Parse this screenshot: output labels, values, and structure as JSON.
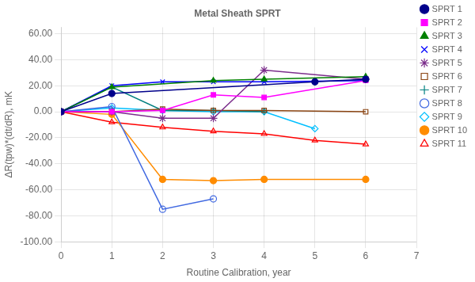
{
  "chart_data": {
    "type": "line",
    "title": "Metal Sheath SPRT",
    "xlabel": "Routine Calibration, year",
    "ylabel": "ΔR(tpw)*(dt/dR), mK",
    "xlim": [
      0,
      7
    ],
    "ylim": [
      -100,
      65
    ],
    "xticks": [
      0,
      1,
      2,
      3,
      4,
      5,
      6,
      7
    ],
    "yticks": [
      {
        "value": -100,
        "label": "-100.00"
      },
      {
        "value": -80,
        "label": "-80.00"
      },
      {
        "value": -60,
        "label": "-60.00"
      },
      {
        "value": -40,
        "label": "-40.00"
      },
      {
        "value": -20,
        "label": "-20.00"
      },
      {
        "value": 0,
        "label": "0.00"
      },
      {
        "value": 20,
        "label": "20.00"
      },
      {
        "value": 40,
        "label": "40.00"
      },
      {
        "value": 60,
        "label": "60.00"
      }
    ],
    "grid": true,
    "legend": "right",
    "series": [
      {
        "name": "SPRT 1",
        "color": "#00008B",
        "marker": "circle",
        "x": [
          0,
          1,
          5,
          6
        ],
        "values": [
          0,
          14,
          23,
          25
        ]
      },
      {
        "name": "SPRT 2",
        "color": "#FF00FF",
        "marker": "square",
        "x": [
          0,
          1,
          2,
          3,
          4,
          6
        ],
        "values": [
          0,
          0,
          1,
          13,
          11,
          24
        ]
      },
      {
        "name": "SPRT 3",
        "color": "#008000",
        "marker": "triangle",
        "x": [
          0,
          1,
          3,
          4,
          6
        ],
        "values": [
          0,
          19,
          24,
          25,
          27
        ]
      },
      {
        "name": "SPRT 4",
        "color": "#0000FF",
        "marker": "x",
        "x": [
          0,
          1,
          2,
          3,
          4,
          6
        ],
        "values": [
          0,
          20,
          23,
          23,
          23,
          24
        ]
      },
      {
        "name": "SPRT 5",
        "color": "#7B2D8B",
        "marker": "star",
        "x": [
          0,
          1,
          2,
          3,
          4,
          6
        ],
        "values": [
          0,
          0,
          -5,
          -5,
          32,
          25
        ]
      },
      {
        "name": "SPRT 6",
        "color": "#8B4513",
        "marker": "square-open",
        "x": [
          0,
          1,
          2,
          3,
          4,
          6
        ],
        "values": [
          0,
          0,
          2,
          1,
          1,
          0
        ]
      },
      {
        "name": "SPRT 7",
        "color": "#008080",
        "marker": "plus",
        "x": [
          0,
          1,
          2,
          3,
          4
        ],
        "values": [
          0,
          19,
          1,
          1,
          0
        ]
      },
      {
        "name": "SPRT 8",
        "color": "#4169E1",
        "marker": "circle-open",
        "x": [
          0,
          1,
          2,
          3
        ],
        "values": [
          0,
          4,
          -75,
          -67
        ]
      },
      {
        "name": "SPRT 9",
        "color": "#00BFFF",
        "marker": "diamond-open",
        "x": [
          0,
          1,
          2,
          3,
          4,
          5
        ],
        "values": [
          0,
          3,
          1,
          0,
          0,
          -13
        ]
      },
      {
        "name": "SPRT 10",
        "color": "#FF8C00",
        "marker": "circle",
        "x": [
          0,
          1,
          2,
          3,
          4,
          6
        ],
        "values": [
          0,
          -2,
          -52,
          -53,
          -52,
          -52
        ]
      },
      {
        "name": "SPRT 11",
        "color": "#FF0000",
        "marker": "triangle-open",
        "x": [
          0,
          1,
          2,
          3,
          4,
          5,
          6
        ],
        "values": [
          0,
          -8,
          -12,
          -15,
          -17,
          -22,
          -25
        ]
      }
    ]
  }
}
